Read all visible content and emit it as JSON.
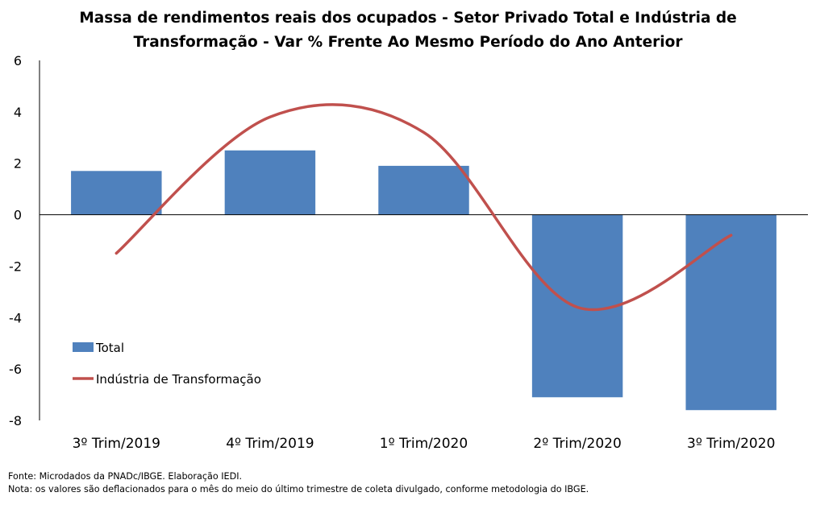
{
  "chart_data": {
    "type": "bar",
    "title_lines": [
      "Massa de rendimentos reais dos ocupados - Setor Privado Total e Indústria de",
      "Transformação - Var % Frente Ao Mesmo Período do Ano Anterior"
    ],
    "categories": [
      "3º Trim/2019",
      "4º Trim/2019",
      "1º Trim/2020",
      "2º Trim/2020",
      "3º Trim/2020"
    ],
    "series": [
      {
        "name": "Total",
        "kind": "bar",
        "color": "#4f81bd",
        "values": [
          1.7,
          2.5,
          1.9,
          -7.1,
          -7.6
        ]
      },
      {
        "name": "Indústria de Transformação",
        "kind": "line",
        "smooth": true,
        "color": "#c0504d",
        "values": [
          -1.5,
          3.8,
          3.2,
          -3.6,
          -0.8
        ]
      }
    ],
    "ylim": [
      -8,
      6
    ],
    "yticks": [
      "6",
      "4",
      "2",
      "0",
      "-2",
      "-4",
      "-6",
      "-8"
    ],
    "grid": false,
    "legend_position": "left, lower inside plot"
  },
  "footer": {
    "source": "Fonte: Microdados da PNADc/IBGE. Elaboração IEDI.",
    "note": "Nota: os valores são deflacionados para o mês do meio do último trimestre de coleta divulgado, conforme metodologia do IBGE."
  }
}
